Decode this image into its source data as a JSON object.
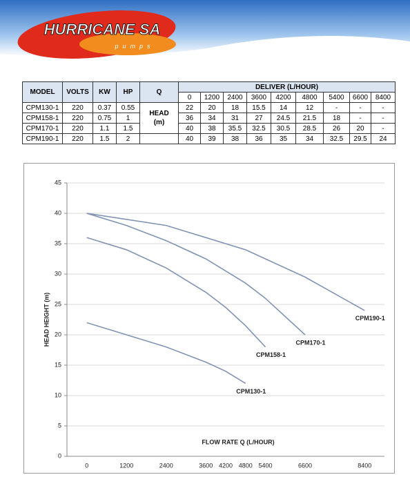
{
  "header": {
    "brand": "HURRICANE SA",
    "tagline": "pumps"
  },
  "table": {
    "headers": [
      "MODEL",
      "VOLTS",
      "KW",
      "HP",
      "Q"
    ],
    "deliver_label": "DELIVER (L/HOUR)",
    "flows": [
      "0",
      "1200",
      "2400",
      "3600",
      "4200",
      "4800",
      "5400",
      "6600",
      "8400"
    ],
    "head_label": [
      "HEAD",
      "(m)"
    ],
    "rows": [
      [
        "CPM130-1",
        "220",
        "0.37",
        "0.55",
        "22",
        "20",
        "18",
        "15.5",
        "14",
        "12",
        "-",
        "-",
        "-"
      ],
      [
        "CPM158-1",
        "220",
        "0.75",
        "1",
        "36",
        "34",
        "31",
        "27",
        "24.5",
        "21.5",
        "18",
        "-",
        "-"
      ],
      [
        "CPM170-1",
        "220",
        "1.1",
        "1.5",
        "40",
        "38",
        "35.5",
        "32.5",
        "30.5",
        "28.5",
        "26",
        "20",
        "-"
      ],
      [
        "CPM190-1",
        "220",
        "1.5",
        "2",
        "40",
        "39",
        "38",
        "36",
        "35",
        "34",
        "32.5",
        "29.5",
        "24"
      ]
    ]
  },
  "chart_data": {
    "type": "line",
    "y_label": "HEAD HEIGHT (m)",
    "x_label": "FLOW RATE Q (L/HOUR)",
    "x": [
      0,
      1200,
      2400,
      3600,
      4200,
      4800,
      5400,
      6600,
      8400
    ],
    "xlim": [
      -600,
      9000
    ],
    "xticks": [
      0,
      1200,
      2400,
      3600,
      4200,
      4800,
      5400,
      6600,
      8400
    ],
    "ylim": [
      0,
      45
    ],
    "yticks": [
      0,
      5,
      10,
      15,
      20,
      25,
      30,
      35,
      40,
      45
    ],
    "grid": true,
    "series": [
      {
        "name": "CPM130-1",
        "color": "#8193b2",
        "values": [
          22,
          20,
          18,
          15.5,
          14,
          12,
          null,
          null,
          null
        ]
      },
      {
        "name": "CPM158-1",
        "color": "#8193b2",
        "values": [
          36,
          34,
          31,
          27,
          24.5,
          21.5,
          18,
          null,
          null
        ]
      },
      {
        "name": "CPM170-1",
        "color": "#8193b2",
        "values": [
          40,
          38,
          35.5,
          32.5,
          30.5,
          28.5,
          26,
          20,
          null
        ]
      },
      {
        "name": "CPM190-1",
        "color": "#8193b2",
        "values": [
          40,
          39,
          38,
          36,
          35,
          34,
          32.5,
          29.5,
          24
        ]
      }
    ]
  }
}
